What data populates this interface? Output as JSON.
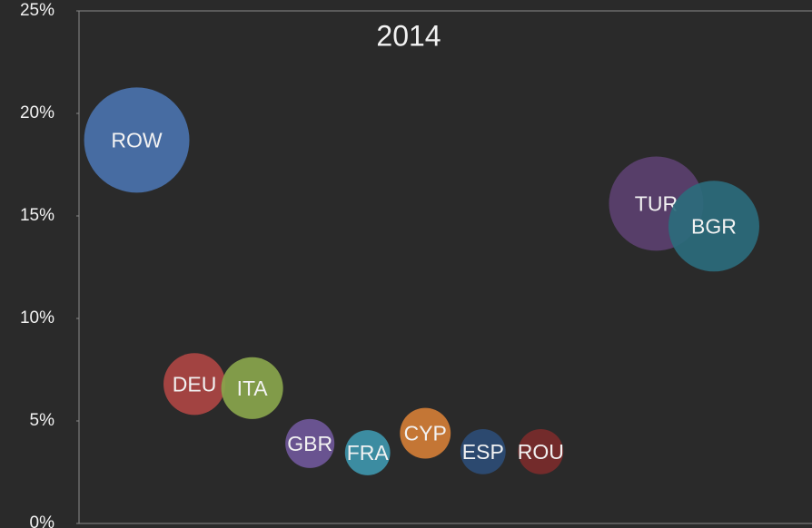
{
  "chart_data": {
    "type": "scatter",
    "title": "2014",
    "categories": [
      "ROW",
      "DEU",
      "ITA",
      "GBR",
      "FRA",
      "CYP",
      "ESP",
      "ROU",
      "TUR",
      "BGR"
    ],
    "x": [
      1,
      2,
      3,
      4,
      5,
      6,
      7,
      8,
      10,
      11
    ],
    "values": [
      18.7,
      6.8,
      6.6,
      3.9,
      3.45,
      4.4,
      3.5,
      3.5,
      15.6,
      14.5
    ],
    "sizes": [
      336,
      116,
      116,
      73,
      62,
      78,
      62,
      62,
      270,
      250
    ],
    "colors": [
      "#4a72ad",
      "#ad4543",
      "#89a54c",
      "#6f5799",
      "#3e95ab",
      "#d17d36",
      "#2d4c75",
      "#7a2b2b",
      "#5b406f",
      "#2b6b7c"
    ],
    "xlim": [
      0,
      12.7
    ],
    "ylim": [
      0,
      25
    ],
    "yticks": [
      {
        "value": 0,
        "label": "0%"
      },
      {
        "value": 5,
        "label": "5%"
      },
      {
        "value": 10,
        "label": "10%"
      },
      {
        "value": 15,
        "label": "15%"
      },
      {
        "value": 20,
        "label": "20%"
      },
      {
        "value": 25,
        "label": "25%"
      }
    ]
  }
}
